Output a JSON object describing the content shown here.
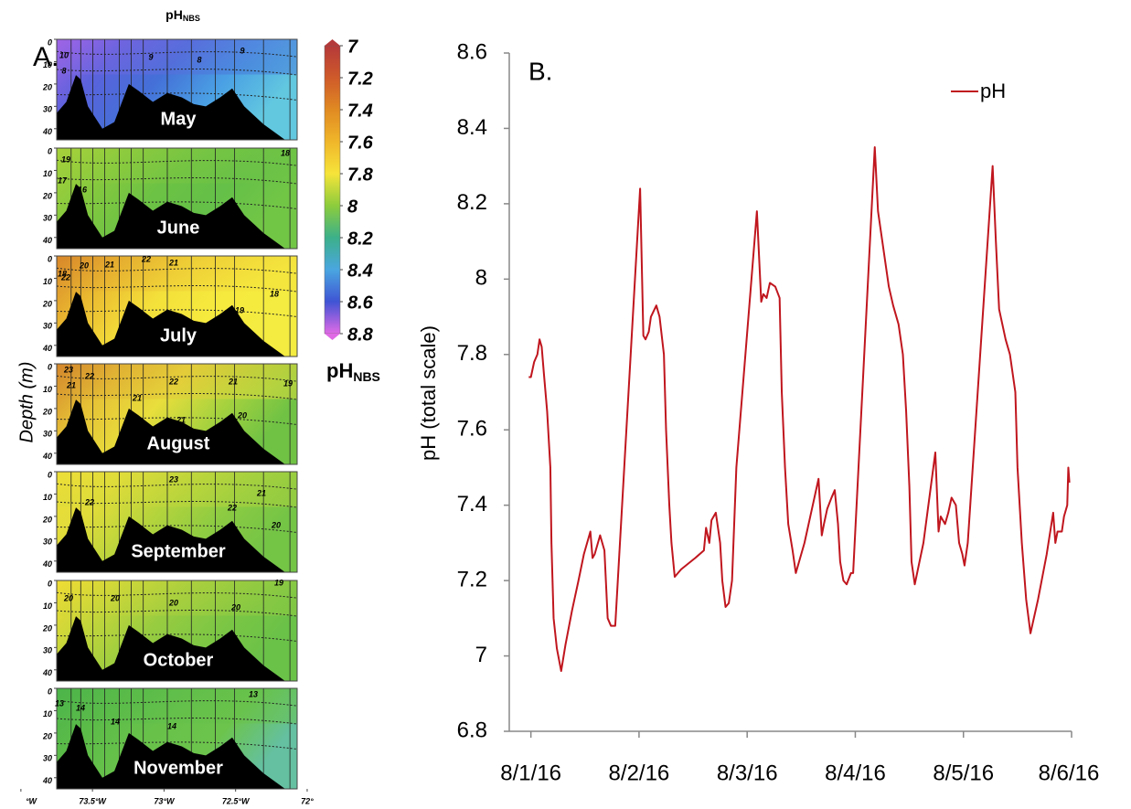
{
  "chart_data": [
    {
      "type": "section",
      "label": "A.",
      "title": "pH",
      "title_sub": "NBS",
      "ylabel": "Depth (m)",
      "ylim": [
        0,
        45
      ],
      "yticks": [
        0,
        10,
        20,
        30,
        40
      ],
      "xlim": [
        73.75,
        72.07
      ],
      "xticks": [
        {
          "value": 74,
          "label": "°W"
        },
        {
          "value": 73.5,
          "label": "73.5°W"
        },
        {
          "value": 73,
          "label": "73°W"
        },
        {
          "value": 72.5,
          "label": "72.5°W"
        },
        {
          "value": 72,
          "label": "72°"
        }
      ],
      "sections": [
        {
          "name": "May",
          "contour_labels": [
            10,
            8,
            9,
            8,
            9
          ]
        },
        {
          "name": "June",
          "contour_labels": [
            19,
            17,
            16,
            18
          ]
        },
        {
          "name": "July",
          "contour_labels": [
            20,
            18,
            22,
            21,
            22,
            21,
            20,
            19,
            18
          ]
        },
        {
          "name": "August",
          "contour_labels": [
            23,
            22,
            21,
            22,
            21,
            21,
            20,
            21,
            19
          ]
        },
        {
          "name": "September",
          "contour_labels": [
            23,
            22,
            22,
            21,
            20
          ]
        },
        {
          "name": "October",
          "contour_labels": [
            20,
            20,
            20,
            19,
            20
          ]
        },
        {
          "name": "November",
          "contour_labels": [
            13,
            14,
            14,
            14,
            13
          ]
        }
      ],
      "colorbar": {
        "lim": [
          7,
          8.8
        ],
        "ticks": [
          7,
          7.2,
          7.4,
          7.6,
          7.8,
          8,
          8.2,
          8.4,
          8.6,
          8.8
        ],
        "colors": [
          "#b5393a",
          "#cf5a2a",
          "#e08a22",
          "#f0b62a",
          "#f6e43a",
          "#8ccc3c",
          "#3cb08a",
          "#4aa6e0",
          "#3f54d4",
          "#e06ae6"
        ],
        "label": "pH",
        "label_sub": "NBS"
      }
    },
    {
      "type": "line",
      "label": "B.",
      "ylabel": "pH (total scale)",
      "xlim": [
        -0.2,
        5
      ],
      "xticks": [
        {
          "value": 0,
          "label": "8/1/16"
        },
        {
          "value": 1,
          "label": "8/2/16"
        },
        {
          "value": 2,
          "label": "8/3/16"
        },
        {
          "value": 3,
          "label": "8/4/16"
        },
        {
          "value": 4,
          "label": "8/5/16"
        },
        {
          "value": 5,
          "label": "8/6/16"
        }
      ],
      "ylim": [
        6.8,
        8.6
      ],
      "yticks": [
        6.8,
        7,
        7.2,
        7.4,
        7.6,
        7.8,
        8,
        8.2,
        8.4,
        8.6
      ],
      "legend": "upper right",
      "x": [
        -0.02,
        0,
        0.03,
        0.06,
        0.08,
        0.1,
        0.12,
        0.15,
        0.18,
        0.19,
        0.21,
        0.24,
        0.26,
        0.28,
        0.32,
        0.38,
        0.44,
        0.49,
        0.52,
        0.53,
        0.55,
        0.57,
        0.59,
        0.62,
        0.64,
        0.68,
        0.71,
        0.74,
        0.78,
        1.01,
        1.04,
        1.06,
        1.09,
        1.11,
        1.16,
        1.19,
        1.23,
        1.25,
        1.28,
        1.3,
        1.33,
        1.39,
        1.52,
        1.6,
        1.62,
        1.65,
        1.67,
        1.71,
        1.75,
        1.77,
        1.8,
        1.83,
        1.86,
        1.9,
        2.09,
        2.13,
        2.15,
        2.18,
        2.21,
        2.26,
        2.3,
        2.32,
        2.35,
        2.38,
        2.42,
        2.45,
        2.53,
        2.66,
        2.69,
        2.71,
        2.74,
        2.78,
        2.81,
        2.84,
        2.86,
        2.89,
        2.92,
        2.96,
        2.98,
        3.18,
        3.21,
        3.25,
        3.31,
        3.35,
        3.4,
        3.44,
        3.47,
        3.5,
        3.52,
        3.55,
        3.63,
        3.74,
        3.77,
        3.79,
        3.83,
        3.86,
        3.89,
        3.93,
        3.96,
        3.99,
        4.01,
        4.04,
        4.27,
        4.3,
        4.33,
        4.36,
        4.39,
        4.43,
        4.48,
        4.5,
        4.54,
        4.58,
        4.62,
        4.69,
        4.77,
        4.83,
        4.85,
        4.87,
        4.91,
        4.93,
        4.96,
        4.97,
        4.98
      ],
      "series": [
        {
          "name": "pH",
          "color": "#c0161e",
          "values": [
            7.74,
            7.74,
            7.78,
            7.8,
            7.84,
            7.82,
            7.75,
            7.65,
            7.5,
            7.3,
            7.1,
            7.02,
            6.99,
            6.96,
            7.03,
            7.12,
            7.2,
            7.27,
            7.3,
            7.31,
            7.33,
            7.26,
            7.27,
            7.3,
            7.32,
            7.28,
            7.1,
            7.08,
            7.08,
            8.24,
            7.85,
            7.84,
            7.86,
            7.9,
            7.93,
            7.9,
            7.8,
            7.6,
            7.4,
            7.3,
            7.21,
            7.23,
            7.26,
            7.28,
            7.34,
            7.3,
            7.36,
            7.38,
            7.3,
            7.2,
            7.13,
            7.14,
            7.2,
            7.5,
            8.18,
            7.94,
            7.96,
            7.95,
            7.99,
            7.98,
            7.95,
            7.7,
            7.5,
            7.35,
            7.28,
            7.22,
            7.3,
            7.47,
            7.32,
            7.35,
            7.39,
            7.42,
            7.44,
            7.35,
            7.25,
            7.2,
            7.19,
            7.22,
            7.22,
            8.35,
            8.18,
            8.1,
            7.98,
            7.93,
            7.88,
            7.8,
            7.65,
            7.45,
            7.25,
            7.19,
            7.3,
            7.54,
            7.33,
            7.37,
            7.35,
            7.38,
            7.42,
            7.4,
            7.3,
            7.27,
            7.24,
            7.3,
            8.3,
            8.1,
            7.92,
            7.88,
            7.84,
            7.8,
            7.7,
            7.5,
            7.3,
            7.15,
            7.06,
            7.15,
            7.27,
            7.38,
            7.3,
            7.33,
            7.33,
            7.37,
            7.4,
            7.5,
            7.46
          ]
        }
      ]
    }
  ]
}
